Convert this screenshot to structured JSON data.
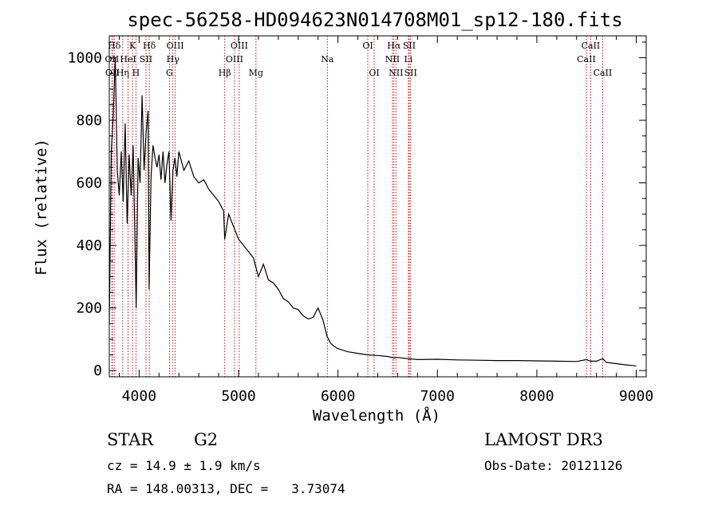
{
  "chart_data": {
    "type": "line",
    "title": "spec-56258-HD094623N014708M01_sp12-180.fits",
    "xlabel": "Wavelength (Å)",
    "ylabel": "Flux (relative)",
    "xlim": [
      3700,
      9100
    ],
    "ylim": [
      -20,
      1070
    ],
    "xticks": [
      4000,
      5000,
      6000,
      7000,
      8000,
      9000
    ],
    "yticks": [
      0,
      200,
      400,
      600,
      800,
      1000
    ],
    "x": [
      3700,
      3720,
      3740,
      3760,
      3780,
      3800,
      3820,
      3840,
      3860,
      3880,
      3900,
      3920,
      3940,
      3960,
      3970,
      3990,
      4010,
      4030,
      4050,
      4070,
      4090,
      4100,
      4120,
      4140,
      4160,
      4180,
      4200,
      4220,
      4240,
      4260,
      4280,
      4300,
      4320,
      4340,
      4360,
      4380,
      4400,
      4450,
      4500,
      4550,
      4600,
      4650,
      4700,
      4750,
      4800,
      4850,
      4861,
      4900,
      4950,
      5000,
      5050,
      5100,
      5150,
      5200,
      5250,
      5300,
      5350,
      5400,
      5450,
      5500,
      5550,
      5600,
      5650,
      5700,
      5750,
      5800,
      5850,
      5890,
      5920,
      5950,
      6000,
      6100,
      6200,
      6300,
      6400,
      6500,
      6563,
      6600,
      6700,
      6800,
      7000,
      7200,
      7400,
      7600,
      7800,
      8000,
      8200,
      8400,
      8498,
      8542,
      8600,
      8662,
      8700,
      8800,
      8900,
      9000
    ],
    "y": [
      150,
      700,
      820,
      1000,
      640,
      560,
      700,
      540,
      790,
      470,
      690,
      560,
      720,
      380,
      200,
      680,
      600,
      880,
      640,
      760,
      830,
      260,
      620,
      720,
      680,
      650,
      690,
      610,
      700,
      600,
      660,
      700,
      480,
      640,
      680,
      620,
      700,
      640,
      670,
      620,
      600,
      610,
      580,
      560,
      540,
      510,
      420,
      500,
      460,
      420,
      400,
      380,
      360,
      300,
      340,
      290,
      280,
      260,
      230,
      220,
      200,
      195,
      175,
      165,
      170,
      200,
      160,
      110,
      90,
      80,
      70,
      60,
      55,
      50,
      48,
      45,
      40,
      42,
      38,
      35,
      36,
      34,
      33,
      32,
      32,
      31,
      30,
      29,
      35,
      30,
      30,
      38,
      26,
      22,
      18,
      15
    ],
    "lines": [
      {
        "label": "Hδ",
        "x": 3750,
        "row": 0
      },
      {
        "label": "K",
        "x": 3934,
        "row": 0
      },
      {
        "label": "Hδ",
        "x": 4102,
        "row": 0
      },
      {
        "label": "OIII",
        "x": 4363,
        "row": 0
      },
      {
        "label": "OIII",
        "x": 5007,
        "row": 0
      },
      {
        "label": "OI",
        "x": 6300,
        "row": 0
      },
      {
        "label": "Hα",
        "x": 6563,
        "row": 0
      },
      {
        "label": "SII",
        "x": 6717,
        "row": 0
      },
      {
        "label": "CaII",
        "x": 8542,
        "row": 0
      },
      {
        "label": "OII",
        "x": 3727,
        "row": 1
      },
      {
        "label": "HeI",
        "x": 3889,
        "row": 1
      },
      {
        "label": "SII",
        "x": 4069,
        "row": 1
      },
      {
        "label": "Hγ",
        "x": 4340,
        "row": 1
      },
      {
        "label": "OIII",
        "x": 4959,
        "row": 1
      },
      {
        "label": "Na",
        "x": 5893,
        "row": 1
      },
      {
        "label": "NII",
        "x": 6548,
        "row": 1
      },
      {
        "label": "Li",
        "x": 6708,
        "row": 1
      },
      {
        "label": "CaII",
        "x": 8498,
        "row": 1
      },
      {
        "label": "OII",
        "x": 3730,
        "row": 2
      },
      {
        "label": "Hη",
        "x": 3835,
        "row": 2
      },
      {
        "label": "H",
        "x": 3968,
        "row": 2
      },
      {
        "label": "G",
        "x": 4305,
        "row": 2
      },
      {
        "label": "Hβ",
        "x": 4861,
        "row": 2
      },
      {
        "label": "Mg",
        "x": 5175,
        "row": 2
      },
      {
        "label": "OI",
        "x": 6364,
        "row": 2
      },
      {
        "label": "NII",
        "x": 6583,
        "row": 2
      },
      {
        "label": "SII",
        "x": 6731,
        "row": 2
      },
      {
        "label": "CaII",
        "x": 8662,
        "row": 2
      }
    ]
  },
  "info": {
    "class_label": "STAR",
    "subclass": "G2",
    "survey": "LAMOST DR3",
    "cz_text": "cz = 14.9 ± 1.9 km/s",
    "obs_date_text": "Obs-Date: 20121126",
    "coords_text": "RA = 148.00313, DEC =   3.73074"
  }
}
